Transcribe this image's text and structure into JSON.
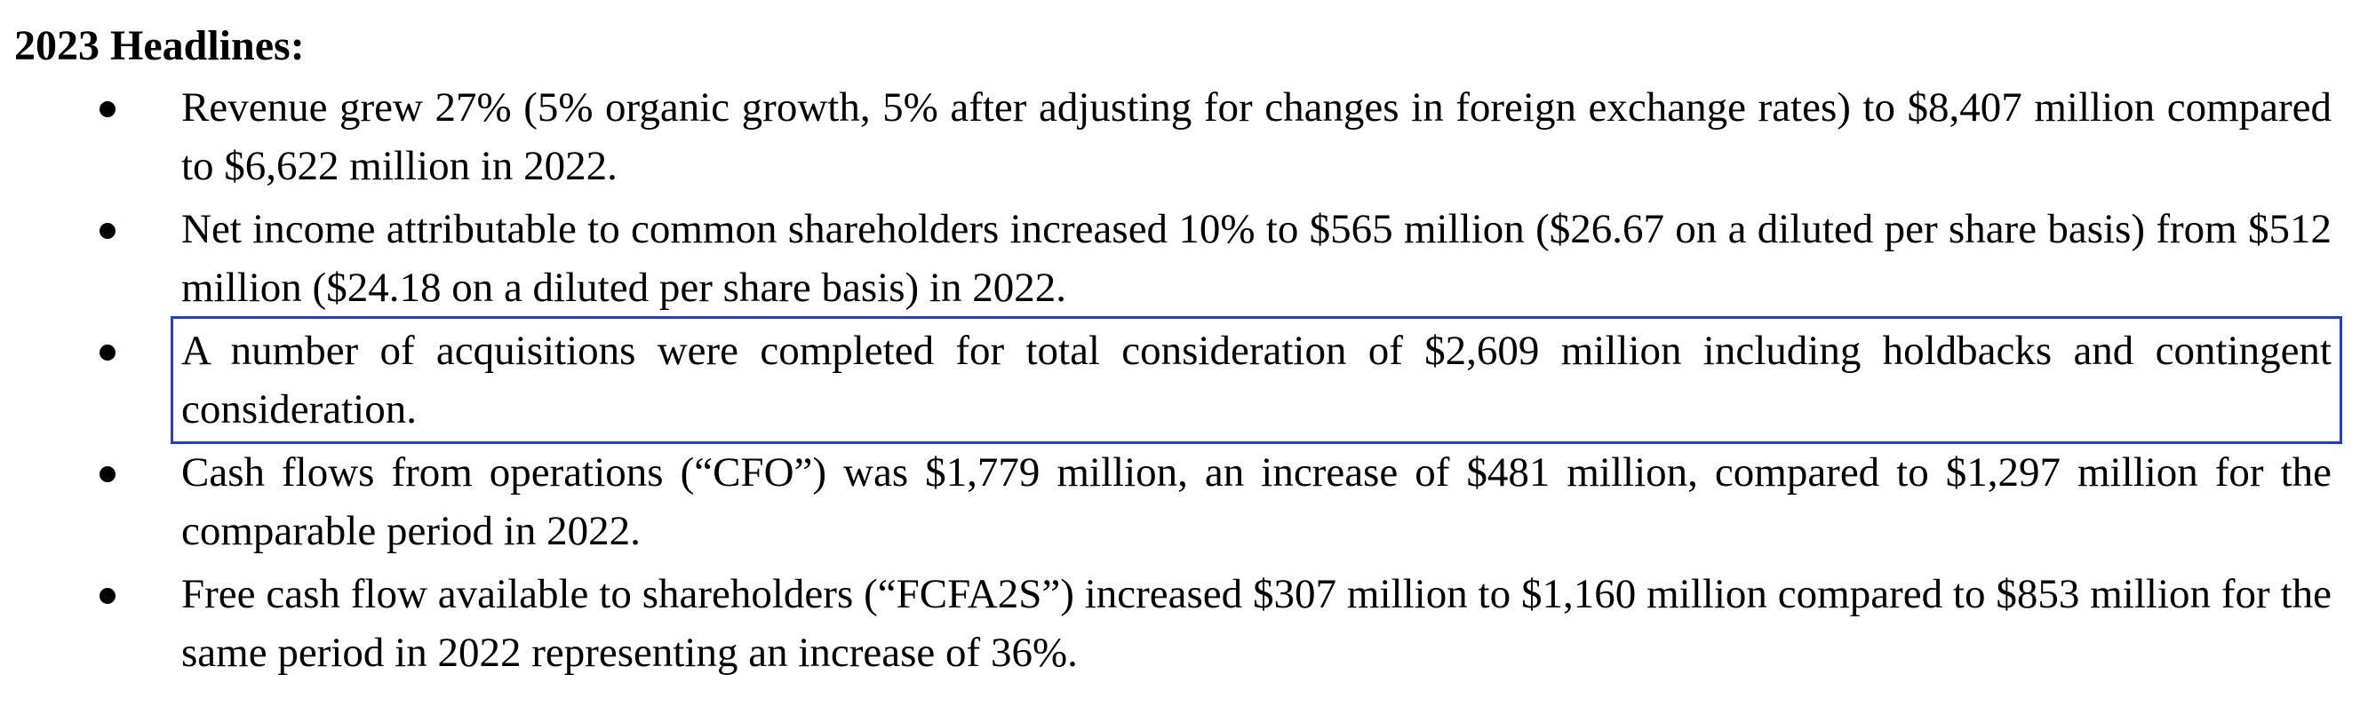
{
  "heading": "2023 Headlines:",
  "highlight_color": "#1f3fd1",
  "bullets": [
    {
      "text": "Revenue grew 27% (5% organic growth, 5% after adjusting for changes in foreign exchange rates) to $8,407 million compared to $6,622 million in 2022."
    },
    {
      "text": "Net income attributable to common shareholders increased 10% to $565 million ($26.67 on a diluted per share basis) from $512 million ($24.18 on a diluted per share basis) in 2022."
    },
    {
      "text": "A number of acquisitions were completed for total consideration of $2,609 million including holdbacks and contingent consideration.",
      "highlighted": true
    },
    {
      "text": "Cash flows from operations (“CFO”) was $1,779 million, an increase of $481 million, compared to $1,297 million for the comparable period in 2022."
    },
    {
      "text": "Free cash flow available to shareholders (“FCFA2S”) increased $307 million to $1,160 million compared to $853 million for the same period in 2022 representing an increase of 36%."
    }
  ]
}
